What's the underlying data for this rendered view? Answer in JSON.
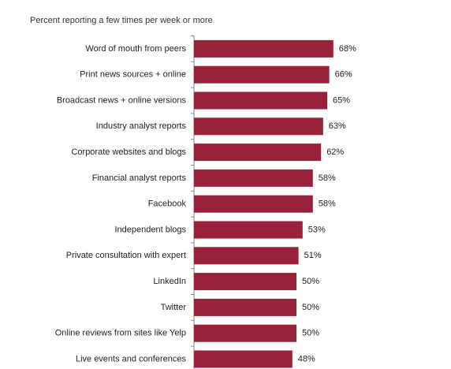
{
  "chart_data": {
    "type": "bar",
    "orientation": "horizontal",
    "subtitle": "Percent reporting a few times per week or more",
    "categories": [
      "Word of mouth from peers",
      "Print news sources + online",
      "Broadcast news + online versions",
      "Industry analyst reports",
      "Corporate websites and blogs",
      "Financial analyst reports",
      "Facebook",
      "Independent blogs",
      "Private consultation with expert",
      "LinkedIn",
      "Twitter",
      "Online reviews from sites like Yelp",
      "Live events and conferences"
    ],
    "values": [
      68,
      66,
      65,
      63,
      62,
      58,
      58,
      53,
      51,
      50,
      50,
      50,
      48
    ],
    "value_labels": [
      "68%",
      "66%",
      "65%",
      "63%",
      "62%",
      "58%",
      "58%",
      "53%",
      "51%",
      "50%",
      "50%",
      "50%",
      "48%"
    ],
    "color": "#98223a"
  }
}
